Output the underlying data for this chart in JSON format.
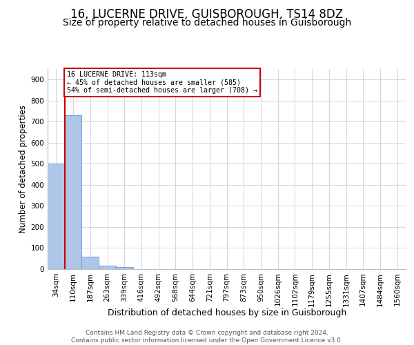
{
  "title": "16, LUCERNE DRIVE, GUISBOROUGH, TS14 8DZ",
  "subtitle": "Size of property relative to detached houses in Guisborough",
  "xlabel": "Distribution of detached houses by size in Guisborough",
  "ylabel": "Number of detached properties",
  "bar_labels": [
    "34sqm",
    "110sqm",
    "187sqm",
    "263sqm",
    "339sqm",
    "416sqm",
    "492sqm",
    "568sqm",
    "644sqm",
    "721sqm",
    "797sqm",
    "873sqm",
    "950sqm",
    "1026sqm",
    "1102sqm",
    "1179sqm",
    "1255sqm",
    "1331sqm",
    "1407sqm",
    "1484sqm",
    "1560sqm"
  ],
  "bar_values": [
    500,
    730,
    60,
    15,
    9,
    0,
    0,
    0,
    0,
    0,
    0,
    0,
    0,
    0,
    0,
    0,
    0,
    0,
    0,
    0,
    0
  ],
  "bar_color": "#aec6e8",
  "bar_edge_color": "#5b9bd5",
  "annotation_line1": "16 LUCERNE DRIVE: 113sqm",
  "annotation_line2": "← 45% of detached houses are smaller (585)",
  "annotation_line3": "54% of semi-detached houses are larger (708) →",
  "annotation_box_color": "#cc0000",
  "marker_line_bin": 1,
  "ylim": [
    0,
    950
  ],
  "yticks": [
    0,
    100,
    200,
    300,
    400,
    500,
    600,
    700,
    800,
    900
  ],
  "footer_line1": "Contains HM Land Registry data © Crown copyright and database right 2024.",
  "footer_line2": "Contains public sector information licensed under the Open Government Licence v3.0.",
  "bg_color": "#ffffff",
  "grid_color": "#ccd5e0",
  "title_fontsize": 12,
  "subtitle_fontsize": 10,
  "tick_fontsize": 7.5,
  "ylabel_fontsize": 8.5,
  "xlabel_fontsize": 9,
  "footer_fontsize": 6.5
}
